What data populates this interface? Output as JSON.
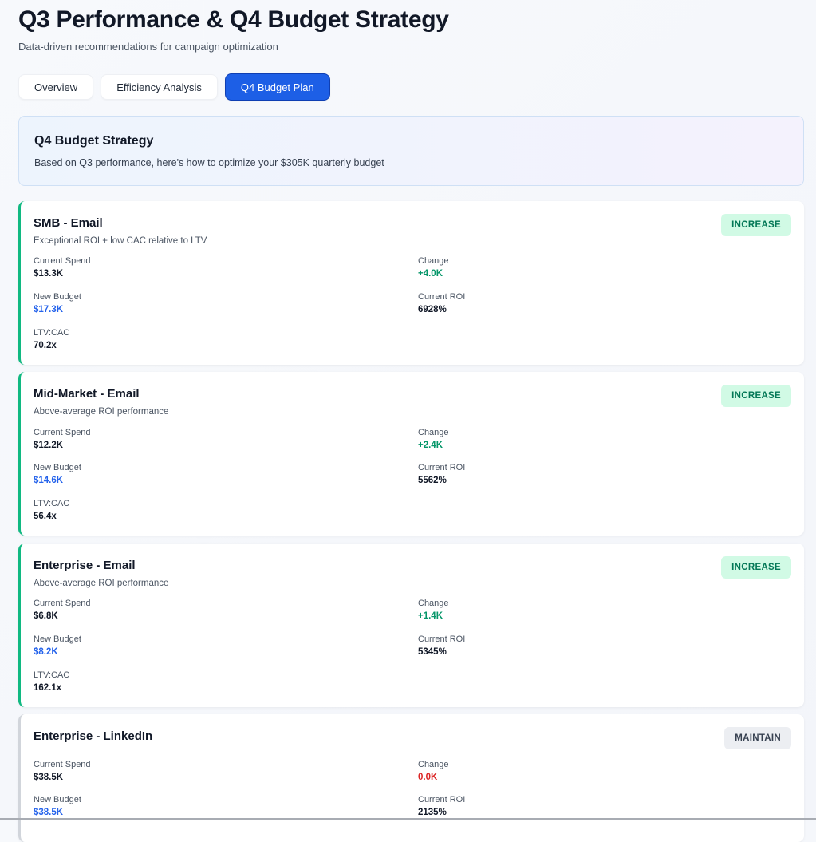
{
  "header": {
    "title": "Q3 Performance & Q4 Budget Strategy",
    "subtitle": "Data-driven recommendations for campaign optimization"
  },
  "tabs": [
    {
      "label": "Overview",
      "active": false
    },
    {
      "label": "Efficiency Analysis",
      "active": false
    },
    {
      "label": "Q4 Budget Plan",
      "active": true
    }
  ],
  "banner": {
    "title": "Q4 Budget Strategy",
    "text": "Based on Q3 performance, here's how to optimize your $305K quarterly budget"
  },
  "labels": {
    "current_spend": "Current Spend",
    "change": "Change",
    "new_budget": "New Budget",
    "current_roi": "Current ROI",
    "ltv_cac": "LTV:CAC"
  },
  "colors": {
    "accent": "#1d5fe6",
    "increase": "#10b981",
    "negative": "#dc2626"
  },
  "cards": [
    {
      "title": "SMB - Email",
      "reason": "Exceptional ROI + low CAC relative to LTV",
      "badge": "INCREASE",
      "current_spend": "$13.3K",
      "change": "+4.0K",
      "new_budget": "$17.3K",
      "current_roi": "6928%",
      "ltv_cac": "70.2x"
    },
    {
      "title": "Mid-Market - Email",
      "reason": "Above-average ROI performance",
      "badge": "INCREASE",
      "current_spend": "$12.2K",
      "change": "+2.4K",
      "new_budget": "$14.6K",
      "current_roi": "5562%",
      "ltv_cac": "56.4x"
    },
    {
      "title": "Enterprise - Email",
      "reason": "Above-average ROI performance",
      "badge": "INCREASE",
      "current_spend": "$6.8K",
      "change": "+1.4K",
      "new_budget": "$8.2K",
      "current_roi": "5345%",
      "ltv_cac": "162.1x"
    },
    {
      "title": "Enterprise - LinkedIn",
      "reason": "",
      "badge": "MAINTAIN",
      "current_spend": "$38.5K",
      "change": "0.0K",
      "new_budget": "$38.5K",
      "current_roi": "2135%",
      "ltv_cac": ""
    }
  ]
}
